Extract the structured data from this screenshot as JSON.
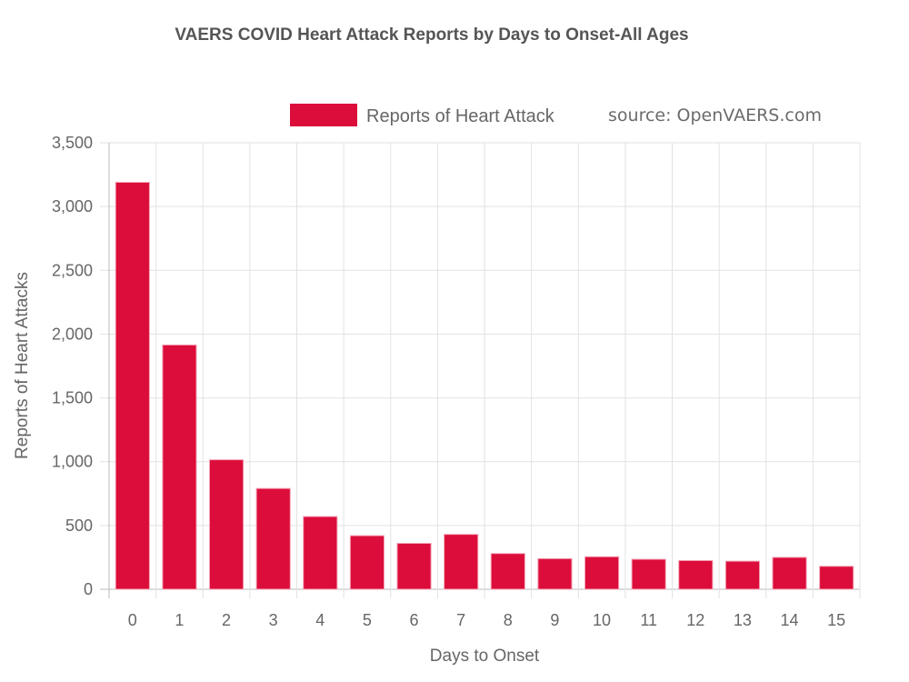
{
  "chart_data": {
    "type": "bar",
    "title": "VAERS COVID Heart Attack Reports by Days to Onset-All Ages",
    "xlabel": "Days to Onset",
    "ylabel": "Reports of Heart Attacks",
    "categories": [
      "0",
      "1",
      "2",
      "3",
      "4",
      "5",
      "6",
      "7",
      "8",
      "9",
      "10",
      "11",
      "12",
      "13",
      "14",
      "15"
    ],
    "series": [
      {
        "name": "Reports of Heart Attack",
        "color": "#dc0d3a",
        "values": [
          3190,
          1915,
          1015,
          790,
          570,
          420,
          360,
          430,
          280,
          240,
          255,
          235,
          225,
          220,
          250,
          180
        ]
      }
    ],
    "ylim": [
      0,
      3500
    ],
    "yticks": [
      0,
      500,
      1000,
      1500,
      2000,
      2500,
      3000,
      3500
    ],
    "ytick_labels": [
      "0",
      "500",
      "1,000",
      "1,500",
      "2,000",
      "2,500",
      "3,000",
      "3,500"
    ],
    "grid": true,
    "legend_position": "top",
    "annotation": "source: OpenVAERS.com"
  }
}
